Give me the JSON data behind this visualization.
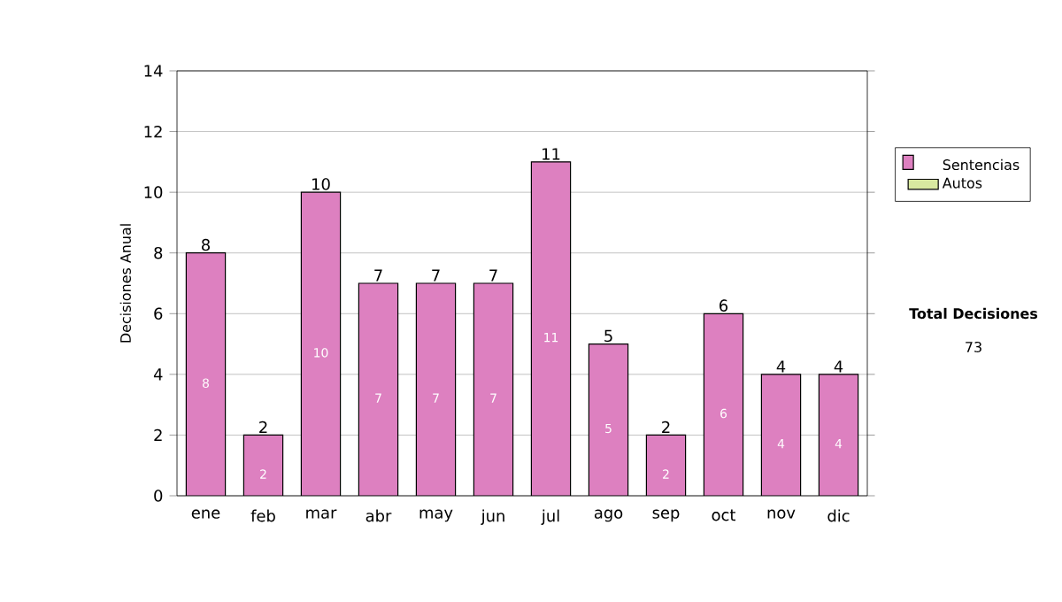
{
  "chart_data": {
    "type": "bar",
    "stacked": true,
    "ylabel": "Decisiones Anual",
    "categories": [
      "ene",
      "feb",
      "mar",
      "abr",
      "may",
      "jun",
      "jul",
      "ago",
      "sep",
      "oct",
      "nov",
      "dic"
    ],
    "series": [
      {
        "name": "Sentencias",
        "color": "#dd80c0",
        "values": [
          8,
          2,
          10,
          7,
          7,
          7,
          11,
          5,
          2,
          6,
          4,
          4
        ]
      },
      {
        "name": "Autos",
        "color": "#d8e8a0",
        "values": [
          null,
          null,
          null,
          null,
          null,
          null,
          null,
          null,
          null,
          null,
          null,
          null
        ]
      }
    ],
    "data_labels": true,
    "totals": [
      "8",
      "2",
      "10",
      "7",
      "7",
      "7",
      "11",
      "5",
      "2",
      "6",
      "4",
      "4"
    ],
    "ylim": [
      0,
      14
    ],
    "yticks": [
      0,
      2,
      4,
      6,
      8,
      10,
      12,
      14
    ],
    "grid": "y",
    "legend": "right",
    "annotations": [
      "Total Decisiones",
      "73"
    ]
  }
}
